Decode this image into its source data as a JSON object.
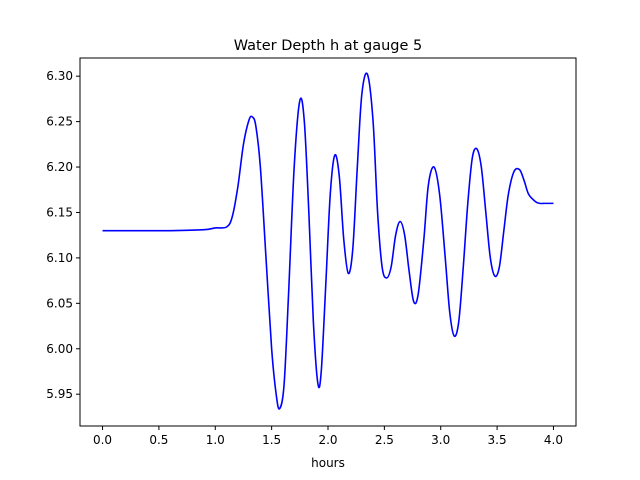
{
  "chart_data": {
    "type": "line",
    "title": "Water Depth h at gauge 5",
    "xlabel": "hours",
    "ylabel": "",
    "xlim": [
      -0.2,
      4.2
    ],
    "ylim": [
      5.915,
      6.32
    ],
    "grid": false,
    "legend": "none",
    "x_ticks": [
      0.0,
      0.5,
      1.0,
      1.5,
      2.0,
      2.5,
      3.0,
      3.5,
      4.0
    ],
    "x_tick_labels": [
      "0.0",
      "0.5",
      "1.0",
      "1.5",
      "2.0",
      "2.5",
      "3.0",
      "3.5",
      "4.0"
    ],
    "y_ticks": [
      5.95,
      6.0,
      6.05,
      6.1,
      6.15,
      6.2,
      6.25,
      6.3
    ],
    "y_tick_labels": [
      "5.95",
      "6.00",
      "6.05",
      "6.10",
      "6.15",
      "6.20",
      "6.25",
      "6.30"
    ],
    "series": [
      {
        "color": "#0000ff",
        "x": [
          0.0,
          0.3,
          0.6,
          0.9,
          1.0,
          1.1,
          1.15,
          1.2,
          1.25,
          1.3,
          1.33,
          1.36,
          1.4,
          1.45,
          1.5,
          1.54,
          1.57,
          1.61,
          1.65,
          1.7,
          1.75,
          1.79,
          1.83,
          1.87,
          1.91,
          1.94,
          1.98,
          2.02,
          2.06,
          2.1,
          2.14,
          2.18,
          2.22,
          2.26,
          2.3,
          2.35,
          2.4,
          2.44,
          2.48,
          2.52,
          2.56,
          2.6,
          2.64,
          2.68,
          2.72,
          2.76,
          2.8,
          2.85,
          2.89,
          2.94,
          2.99,
          3.04,
          3.08,
          3.12,
          3.16,
          3.2,
          3.24,
          3.28,
          3.32,
          3.36,
          3.4,
          3.44,
          3.48,
          3.52,
          3.56,
          3.6,
          3.65,
          3.7,
          3.74,
          3.78,
          3.84,
          3.88,
          3.92,
          3.96,
          4.0
        ],
        "y": [
          6.13,
          6.13,
          6.13,
          6.131,
          6.133,
          6.134,
          6.145,
          6.178,
          6.225,
          6.252,
          6.255,
          6.245,
          6.2,
          6.1,
          6.0,
          5.95,
          5.934,
          5.96,
          6.06,
          6.2,
          6.273,
          6.25,
          6.15,
          6.03,
          5.962,
          5.975,
          6.07,
          6.17,
          6.213,
          6.19,
          6.12,
          6.083,
          6.11,
          6.2,
          6.28,
          6.302,
          6.25,
          6.15,
          6.09,
          6.078,
          6.09,
          6.125,
          6.14,
          6.125,
          6.085,
          6.052,
          6.06,
          6.12,
          6.18,
          6.2,
          6.17,
          6.1,
          6.04,
          6.014,
          6.03,
          6.09,
          6.16,
          6.21,
          6.22,
          6.2,
          6.15,
          6.1,
          6.08,
          6.09,
          6.13,
          6.17,
          6.195,
          6.197,
          6.185,
          6.17,
          6.162,
          6.16,
          6.16,
          6.16,
          6.16
        ]
      }
    ]
  }
}
